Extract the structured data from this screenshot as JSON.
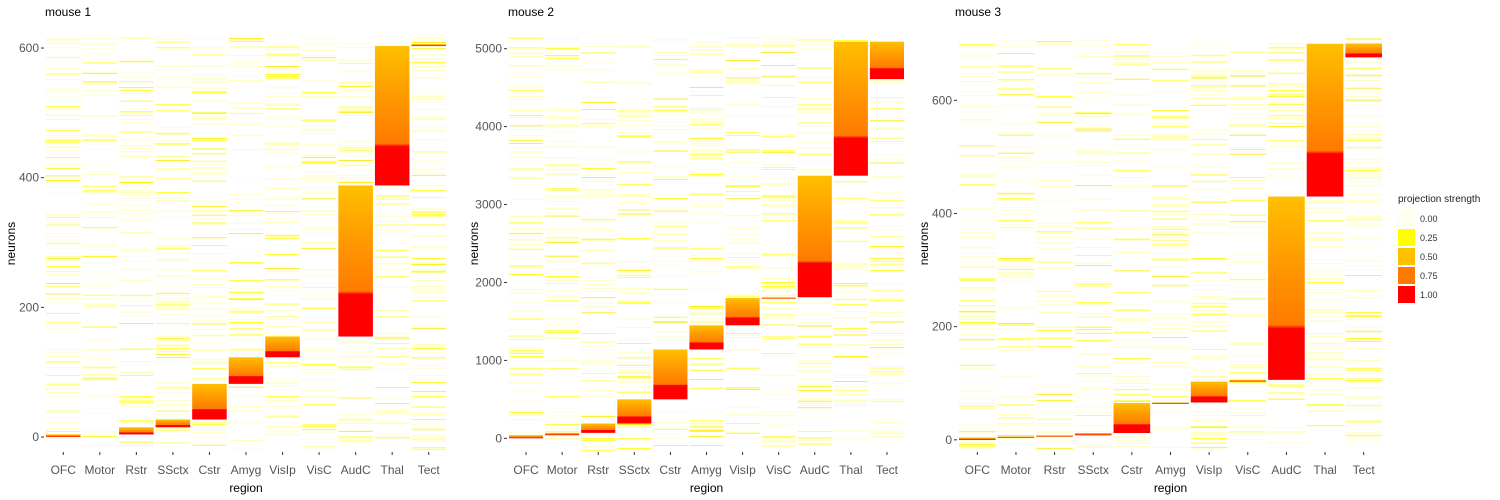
{
  "legend": {
    "title": "projection strength",
    "labels": [
      "0.00",
      "0.25",
      "0.50",
      "0.75",
      "1.00"
    ],
    "colors": [
      "#fffff0",
      "#ffff00",
      "#ffc000",
      "#ff7a00",
      "#ff0000"
    ]
  },
  "chart_data": [
    {
      "type": "heatmap",
      "title": "mouse 1",
      "xlabel": "region",
      "ylabel": "neurons",
      "categories": [
        "OFC",
        "Motor",
        "Rstr",
        "SSctx",
        "Cstr",
        "Amyg",
        "VisIp",
        "VisC",
        "AudC",
        "Thal",
        "Tect"
      ],
      "yticks": [
        0,
        200,
        400,
        600
      ],
      "ylim": [
        -20,
        617
      ],
      "n_neurons": 606,
      "blocks": [
        {
          "region": "OFC",
          "start": 0,
          "end": 4
        },
        {
          "region": "Rstr",
          "start": 4,
          "end": 15
        },
        {
          "region": "SSctx",
          "start": 15,
          "end": 27
        },
        {
          "region": "Cstr",
          "start": 27,
          "end": 82
        },
        {
          "region": "Amyg",
          "start": 82,
          "end": 123
        },
        {
          "region": "VisIp",
          "start": 123,
          "end": 155
        },
        {
          "region": "AudC",
          "start": 155,
          "end": 388
        },
        {
          "region": "Thal",
          "start": 388,
          "end": 603
        },
        {
          "region": "Tect",
          "start": 603,
          "end": 606
        }
      ]
    },
    {
      "type": "heatmap",
      "title": "mouse 2",
      "xlabel": "region",
      "ylabel": "neurons",
      "categories": [
        "OFC",
        "Motor",
        "Rstr",
        "SSctx",
        "Cstr",
        "Amyg",
        "VisIp",
        "VisC",
        "AudC",
        "Thal",
        "Tect"
      ],
      "yticks": [
        0,
        1000,
        2000,
        3000,
        4000,
        5000
      ],
      "ylim": [
        -150,
        5150
      ],
      "n_neurons": 5100,
      "blocks": [
        {
          "region": "OFC",
          "start": 0,
          "end": 40
        },
        {
          "region": "Motor",
          "start": 40,
          "end": 70
        },
        {
          "region": "Rstr",
          "start": 70,
          "end": 190
        },
        {
          "region": "SSctx",
          "start": 190,
          "end": 500
        },
        {
          "region": "Cstr",
          "start": 500,
          "end": 1140
        },
        {
          "region": "Amyg",
          "start": 1140,
          "end": 1450
        },
        {
          "region": "VisIp",
          "start": 1450,
          "end": 1800
        },
        {
          "region": "VisC",
          "start": 1800,
          "end": 1810
        },
        {
          "region": "AudC",
          "start": 1810,
          "end": 3370
        },
        {
          "region": "Thal",
          "start": 3370,
          "end": 5090
        },
        {
          "region": "Tect",
          "start": 4610,
          "end": 5090
        }
      ]
    },
    {
      "type": "heatmap",
      "title": "mouse 3",
      "xlabel": "region",
      "ylabel": "neurons",
      "categories": [
        "OFC",
        "Motor",
        "Rstr",
        "SSctx",
        "Cstr",
        "Amyg",
        "VisIp",
        "VisC",
        "AudC",
        "Thal",
        "Tect"
      ],
      "yticks": [
        0,
        200,
        400,
        600
      ],
      "ylim": [
        -18,
        712
      ],
      "n_neurons": 700,
      "blocks": [
        {
          "region": "OFC",
          "start": 0,
          "end": 4
        },
        {
          "region": "Motor",
          "start": 4,
          "end": 6
        },
        {
          "region": "Rstr",
          "start": 6,
          "end": 8
        },
        {
          "region": "SSctx",
          "start": 8,
          "end": 12
        },
        {
          "region": "Cstr",
          "start": 12,
          "end": 65
        },
        {
          "region": "Amyg",
          "start": 65,
          "end": 66
        },
        {
          "region": "VisIp",
          "start": 66,
          "end": 103
        },
        {
          "region": "VisC",
          "start": 103,
          "end": 106
        },
        {
          "region": "AudC",
          "start": 106,
          "end": 430
        },
        {
          "region": "Thal",
          "start": 430,
          "end": 700
        },
        {
          "region": "Tect",
          "start": 676,
          "end": 700
        }
      ]
    }
  ]
}
